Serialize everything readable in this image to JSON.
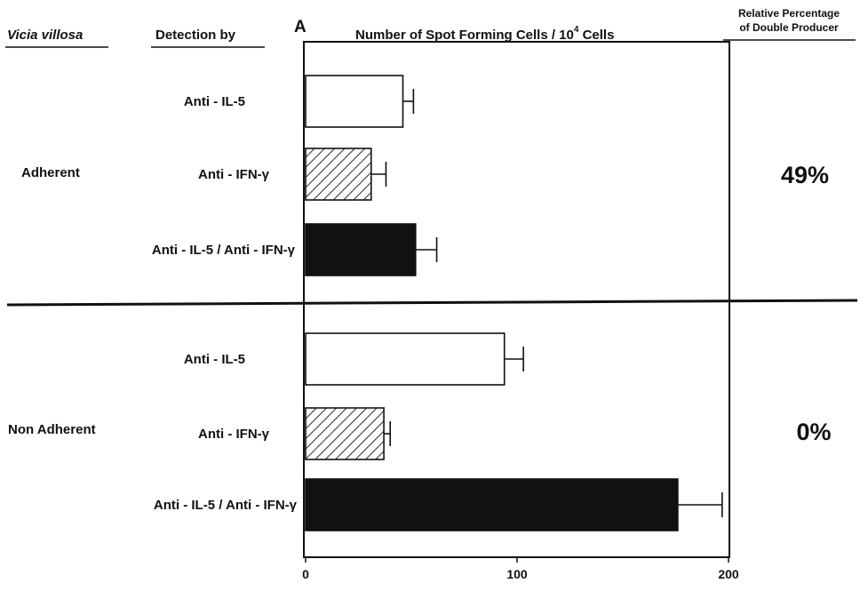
{
  "headers": {
    "group_col": "Vicia villosa",
    "detection_col": "Detection by",
    "panel_label": "A",
    "axis_title_main": "Number of Spot Forming Cells / 10",
    "axis_title_exp": "4",
    "axis_title_tail": " Cells",
    "relative_line1": "Relative Percentage",
    "relative_line2": "of Double Producer"
  },
  "groups": [
    {
      "name": "Adherent",
      "relative_percentage": "49%"
    },
    {
      "name": "Non Adherent",
      "relative_percentage": "0%"
    }
  ],
  "colors": {
    "open": "#ffffff",
    "hatched": "#ffffff",
    "solid": "#111111",
    "line": "#111111"
  },
  "chart_data": {
    "type": "bar",
    "orientation": "horizontal",
    "xlim": [
      0,
      200
    ],
    "ticks": [
      0,
      100,
      200
    ],
    "xlabel": "Number of Spot Forming Cells / 10^4 Cells",
    "rows": [
      {
        "group": "Adherent",
        "label": "Anti - IL-5",
        "value": 46,
        "error": 5,
        "fill": "open"
      },
      {
        "group": "Adherent",
        "label": "Anti - IFN-γ",
        "value": 31,
        "error": 7,
        "fill": "hatched"
      },
      {
        "group": "Adherent",
        "label": "Anti - IL-5 / Anti - IFN-γ",
        "value": 52,
        "error": 10,
        "fill": "solid"
      },
      {
        "group": "Non Adherent",
        "label": "Anti - IL-5",
        "value": 94,
        "error": 9,
        "fill": "open"
      },
      {
        "group": "Non Adherent",
        "label": "Anti - IFN-γ",
        "value": 37,
        "error": 3,
        "fill": "hatched"
      },
      {
        "group": "Non Adherent",
        "label": "Anti - IL-5 / Anti - IFN-γ",
        "value": 176,
        "error": 21,
        "fill": "solid"
      }
    ]
  }
}
